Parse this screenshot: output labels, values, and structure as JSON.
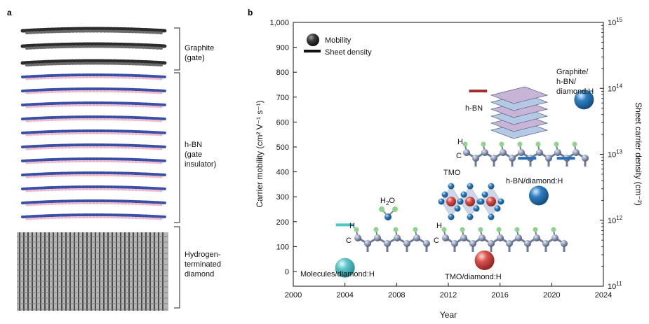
{
  "panel_a": {
    "label": "a",
    "layers": [
      {
        "name": "graphite",
        "lines": [
          "Graphite",
          "(gate)"
        ]
      },
      {
        "name": "hbn",
        "lines": [
          "h-BN",
          "(gate",
          "insulator)"
        ]
      },
      {
        "name": "diamond",
        "lines": [
          "Hydrogen-",
          "terminated",
          "diamond"
        ]
      }
    ],
    "colors": {
      "graphite": "#2b2b2b",
      "boron": "#f0b8c8",
      "nitrogen": "#3a4fa6",
      "diamond": "#9a9a9a"
    }
  },
  "chart_data": {
    "type": "scatter",
    "panel_label": "b",
    "xlabel": "Year",
    "ylabel_left": "Carrier mobility (cm² V⁻¹ s⁻¹)",
    "ylabel_right": "Sheet carrier density (cm⁻²)",
    "xlim": [
      2000,
      2024
    ],
    "ylim_left": [
      -80,
      1000
    ],
    "x_ticks": [
      2000,
      2004,
      2008,
      2012,
      2016,
      2020,
      2024
    ],
    "y_ticks_left": [
      0,
      100,
      200,
      300,
      400,
      500,
      600,
      700,
      800,
      900,
      1000
    ],
    "y_tick_labels_left": [
      "0",
      "100",
      "200",
      "300",
      "400",
      "500",
      "600",
      "700",
      "800",
      "900",
      "1,000"
    ],
    "right_axis": {
      "scale": "log",
      "min_exp": 11,
      "max_exp": 15,
      "ticks_exp": [
        11,
        12,
        13,
        14,
        15
      ],
      "base": "10"
    },
    "legend": {
      "position": "top-left",
      "mobility": "Mobility",
      "density": "Sheet density"
    },
    "mobility_points": [
      {
        "label": "Molecules/diamond:H",
        "x": 2004,
        "y": 15,
        "color": "#5bc5c7"
      },
      {
        "label": "TMO/diamond:H",
        "x": 2014.8,
        "y": 45,
        "color": "#d9534f"
      },
      {
        "label": "h-BN/diamond:H",
        "x": 2019,
        "y": 305,
        "color": "#2f7fc1"
      },
      {
        "label": "Graphite/h-BN/diamond:H",
        "x": 2022.5,
        "y": 690,
        "color": "#2f7fc1"
      }
    ],
    "density_points": [
      {
        "label": "Molecules",
        "x_start": 2003.3,
        "x_end": 2004.7,
        "log_value": 11.93,
        "color": "#4cc6c4"
      },
      {
        "label": "h-BN",
        "x_start": 2013.6,
        "x_end": 2015.0,
        "log_value": 13.96,
        "color": "#a03030"
      },
      {
        "label": "h-BN/diamond:H",
        "x_start": 2017.4,
        "x_end": 2018.8,
        "log_value": 12.94,
        "color": "#2a6fb5"
      },
      {
        "label": "Graphite/h-BN/diamond:H",
        "x_start": 2020.4,
        "x_end": 2021.8,
        "log_value": 12.94,
        "color": "#2a6fb5"
      }
    ],
    "annotations": {
      "h2o": "H",
      "h2o_sub": "2",
      "h2o_tail": "O",
      "tmo": "TMO",
      "hbn": "h-BN",
      "h_atom": "H",
      "c_atom": "C"
    }
  }
}
